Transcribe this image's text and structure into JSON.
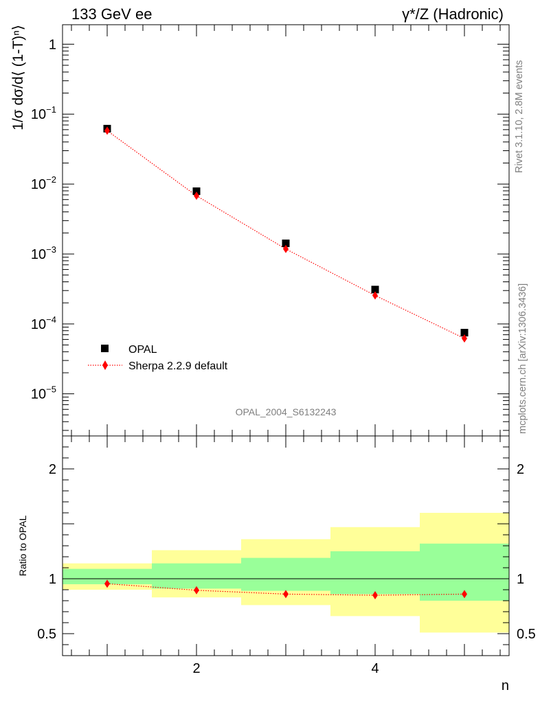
{
  "header": {
    "left_title": "133 GeV ee",
    "right_title": "γ*/Z (Hadronic)"
  },
  "side_labels": {
    "rivet": "Rivet 3.1.10,  2.8M events",
    "mcplots": "mcplots.cern.ch [arXiv:1306.3436]"
  },
  "watermark": "OPAL_2004_S6132243",
  "colors": {
    "data": "#000000",
    "mc": "#ff0000",
    "band_inner": "#99ff99",
    "band_outer": "#ffff99",
    "side_text": "#7f7f7f"
  },
  "chart_data": [
    {
      "type": "scatter",
      "panel": "main",
      "ylabel": "1/σ dσ/d⟨ (1-T)ⁿ⟩",
      "yscale": "log",
      "xlim": [
        0.5,
        5.5
      ],
      "ylim": [
        2.5e-06,
        1.9
      ],
      "y_tick_labels": [
        {
          "base": "1",
          "exp": "",
          "value": 1
        },
        {
          "base": "10",
          "exp": "−1",
          "value": 0.1
        },
        {
          "base": "10",
          "exp": "−2",
          "value": 0.01
        },
        {
          "base": "10",
          "exp": "−3",
          "value": 0.001
        },
        {
          "base": "10",
          "exp": "−4",
          "value": 0.0001
        },
        {
          "base": "10",
          "exp": "−5",
          "value": 1e-05
        }
      ],
      "legend": {
        "position": "lower-left",
        "entries": [
          {
            "label": "OPAL",
            "marker": "square"
          },
          {
            "label": "Sherpa 2.2.9 default",
            "marker": "diamond-dotted-line"
          }
        ]
      },
      "series": [
        {
          "name": "OPAL",
          "x": [
            1,
            2,
            3,
            4,
            5
          ],
          "values": [
            0.062,
            0.0079,
            0.00142,
            0.00031,
            7.5e-05
          ]
        },
        {
          "name": "Sherpa 2.2.9 default",
          "x": [
            1,
            2,
            3,
            4,
            5
          ],
          "values": [
            0.058,
            0.0068,
            0.00118,
            0.000255,
            6.2e-05
          ]
        }
      ]
    },
    {
      "type": "line",
      "panel": "ratio",
      "ylabel": "Ratio to OPAL",
      "xlabel": "n",
      "xlim": [
        0.5,
        5.5
      ],
      "ylim": [
        0.3,
        2.3
      ],
      "x_tick_labels": [
        "2",
        "4"
      ],
      "x_tick_values": [
        2,
        4
      ],
      "y_tick_labels": [
        "2",
        "1",
        "0.5"
      ],
      "y_tick_values": [
        2,
        1,
        0.5
      ],
      "reference_line": 1,
      "bins": [
        {
          "x_low": 0.5,
          "x_high": 1.5,
          "inner": [
            0.95,
            1.09
          ],
          "outer": [
            0.9,
            1.14
          ]
        },
        {
          "x_low": 1.5,
          "x_high": 2.5,
          "inner": [
            0.91,
            1.14
          ],
          "outer": [
            0.83,
            1.26
          ]
        },
        {
          "x_low": 2.5,
          "x_high": 3.5,
          "inner": [
            0.89,
            1.19
          ],
          "outer": [
            0.76,
            1.36
          ]
        },
        {
          "x_low": 3.5,
          "x_high": 4.5,
          "inner": [
            0.86,
            1.25
          ],
          "outer": [
            0.66,
            1.47
          ]
        },
        {
          "x_low": 4.5,
          "x_high": 5.5,
          "inner": [
            0.8,
            1.32
          ],
          "outer": [
            0.51,
            1.6
          ]
        }
      ],
      "series": [
        {
          "name": "Sherpa 2.2.9 default",
          "x": [
            1,
            2,
            3,
            4,
            5
          ],
          "values": [
            0.955,
            0.895,
            0.86,
            0.85,
            0.86
          ]
        }
      ]
    }
  ]
}
